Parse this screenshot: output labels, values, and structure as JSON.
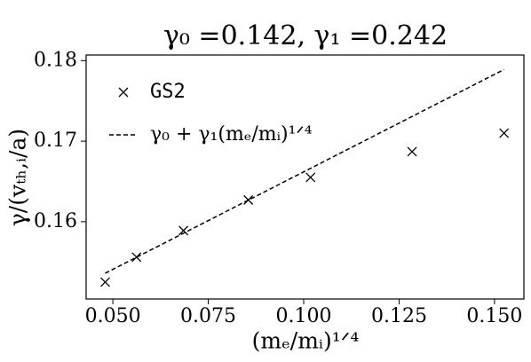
{
  "chart_data": {
    "type": "scatter",
    "title": "γ₀ =0.142, γ₁ =0.242",
    "x_label": "(mₑ/mᵢ)¹ᐟ⁴",
    "y_label": "γ/(vₜₕ,ᵢ/a)",
    "xlim": [
      0.043,
      0.1577
    ],
    "ylim": [
      0.1504,
      0.1807
    ],
    "xticks": [
      {
        "value": 0.05,
        "label": "0.050"
      },
      {
        "value": 0.075,
        "label": "0.075"
      },
      {
        "value": 0.1,
        "label": "0.100"
      },
      {
        "value": 0.125,
        "label": "0.125"
      },
      {
        "value": 0.15,
        "label": "0.150"
      }
    ],
    "yticks": [
      {
        "value": 0.16,
        "label": "0.16"
      },
      {
        "value": 0.17,
        "label": "0.17"
      },
      {
        "value": 0.18,
        "label": "0.18"
      }
    ],
    "legend": "upper left",
    "series": [
      {
        "name": "GS2",
        "color": "#000000",
        "marker": "x",
        "x": [
          0.048,
          0.0562,
          0.0685,
          0.0855,
          0.1018,
          0.1284,
          0.1525
        ],
        "values": [
          0.1525,
          0.1556,
          0.1589,
          0.1627,
          0.1655,
          0.1687,
          0.171
        ]
      },
      {
        "name": "γ₀ + γ₁(mₑ/mᵢ)¹ᐟ⁴",
        "color": "#000000",
        "marker": "dashed-line",
        "x": [
          0.048,
          0.1525
        ],
        "values": [
          0.1536,
          0.1789
        ]
      }
    ]
  }
}
